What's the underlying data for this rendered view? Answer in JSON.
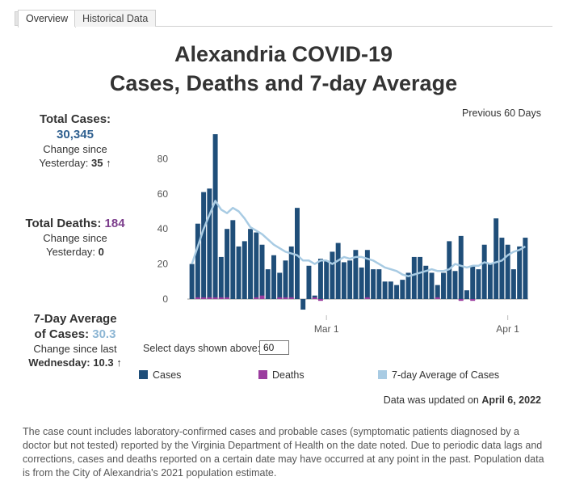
{
  "tabs": [
    {
      "label": "Overview",
      "active": true
    },
    {
      "label": "Historical Data",
      "active": false
    }
  ],
  "title": {
    "line1": "Alexandria COVID-19",
    "line2": "Cases, Deaths and 7-day Average"
  },
  "stats": {
    "cases": {
      "label": "Total Cases:",
      "value": "30,345",
      "change_label_1": "Change since",
      "change_label_2": "Yesterday:",
      "change_value": "35",
      "trend_icon": "↑"
    },
    "deaths": {
      "label": "Total Deaths:",
      "value": "184",
      "change_label_1": "Change since",
      "change_label_2": "Yesterday:",
      "change_value": "0"
    },
    "average": {
      "label_1": "7-Day Average",
      "label_2": "of Cases:",
      "value": "30.3",
      "change_label_1": "Change since last",
      "change_label_2": "Wednesday:",
      "change_value": "10.3",
      "trend_icon": "↑"
    }
  },
  "range_label": "Previous 60 Days",
  "controls": {
    "select_label": "Select days shown above:",
    "days_value": "60"
  },
  "legend": {
    "cases": "Cases",
    "deaths": "Deaths",
    "average": "7-day Average of Cases"
  },
  "colors": {
    "cases": "#1f4e79",
    "deaths": "#9b3d9f",
    "average": "#a8cbe3",
    "stat_blue": "#2e5f8f",
    "stat_purple": "#7c3e8c",
    "stat_lightblue": "#8db6d4"
  },
  "updated": {
    "prefix": "Data was updated on",
    "date": "April 6, 2022"
  },
  "footnote": "The case count includes laboratory-confirmed cases and probable cases (symptomatic patients diagnosed by a doctor but not tested) reported by the Virginia Department of Health on the date noted. Due to periodic data lags and  corrections, cases and deaths reported on a certain date may have occurred at any point in the past. Population data is from the City of Alexandria's 2021 population estimate.",
  "chart_data": {
    "type": "bar",
    "x_start": "2022-02-06",
    "x_tick_labels": [
      "Mar 1",
      "Apr 1"
    ],
    "x_tick_dates": [
      "2022-03-01",
      "2022-04-01"
    ],
    "y_ticks": [
      0,
      20,
      40,
      60,
      80
    ],
    "ylim": [
      -6,
      96
    ],
    "series": [
      {
        "name": "Cases",
        "type": "bar",
        "values": [
          20,
          43,
          61,
          63,
          94,
          24,
          40,
          45,
          30,
          33,
          40,
          38,
          31,
          17,
          25,
          15,
          22,
          30,
          52,
          -6,
          19,
          2,
          23,
          22,
          27,
          32,
          21,
          22,
          28,
          18,
          28,
          17,
          17,
          10,
          10,
          8,
          11,
          15,
          24,
          24,
          19,
          15,
          8,
          15,
          33,
          16,
          36,
          5,
          19,
          17,
          31,
          20,
          46,
          35,
          31,
          17,
          30,
          35
        ]
      },
      {
        "name": "Deaths",
        "type": "bar",
        "values": [
          0,
          1,
          1,
          1,
          1,
          1,
          1,
          0,
          0,
          0,
          0,
          1,
          2,
          0,
          0,
          1,
          1,
          1,
          0,
          0,
          0,
          1,
          -1,
          0,
          0,
          0,
          0,
          0,
          0,
          0,
          1,
          0,
          0,
          0,
          0,
          0,
          0,
          0,
          0,
          0,
          0,
          0,
          1,
          0,
          0,
          0,
          -1,
          0,
          -1,
          0,
          0,
          0,
          0,
          0,
          0,
          0,
          0,
          0
        ]
      },
      {
        "name": "7-day Average of Cases",
        "type": "line",
        "values": [
          20,
          30,
          40,
          48,
          56,
          51,
          49,
          52,
          50,
          46,
          41,
          39,
          37,
          34,
          31,
          29,
          27,
          26,
          25,
          22,
          22,
          20,
          22,
          22,
          20,
          22,
          24,
          23,
          24,
          24,
          23,
          22,
          20,
          18,
          17,
          16,
          14,
          13,
          14,
          15,
          16,
          17,
          16,
          16,
          17,
          20,
          19,
          18,
          19,
          19,
          21,
          20,
          21,
          22,
          25,
          27,
          28,
          30
        ]
      }
    ]
  }
}
